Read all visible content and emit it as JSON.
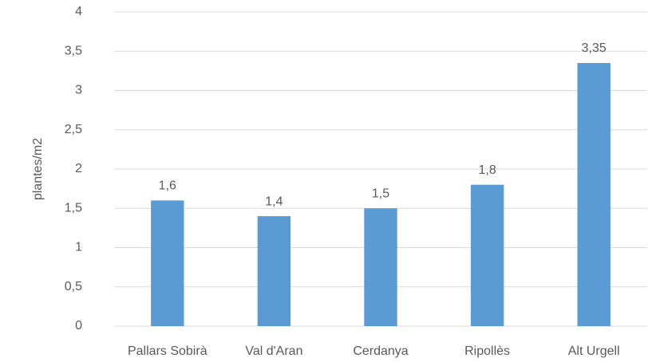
{
  "chart_data": {
    "type": "bar",
    "y_label": "plantes/m2",
    "categories": [
      "Pallars Sobirà",
      "Val d'Aran",
      "Cerdanya",
      "Ripollès",
      "Alt Urgell"
    ],
    "values": [
      1.6,
      1.4,
      1.5,
      1.8,
      3.35
    ],
    "value_labels": [
      "1,6",
      "1,4",
      "1,5",
      "1,8",
      "3,35"
    ],
    "color": "#5b9bd5",
    "ylim": [
      0,
      4
    ],
    "yticks": [
      0,
      {
        "value": 0.5,
        "label": "0,5"
      },
      1,
      {
        "value": 1.5,
        "label": "1,5"
      },
      2,
      {
        "value": 2.5,
        "label": "2,5"
      },
      3,
      {
        "value": 3.5,
        "label": "3,5"
      },
      4
    ],
    "grid": true
  }
}
